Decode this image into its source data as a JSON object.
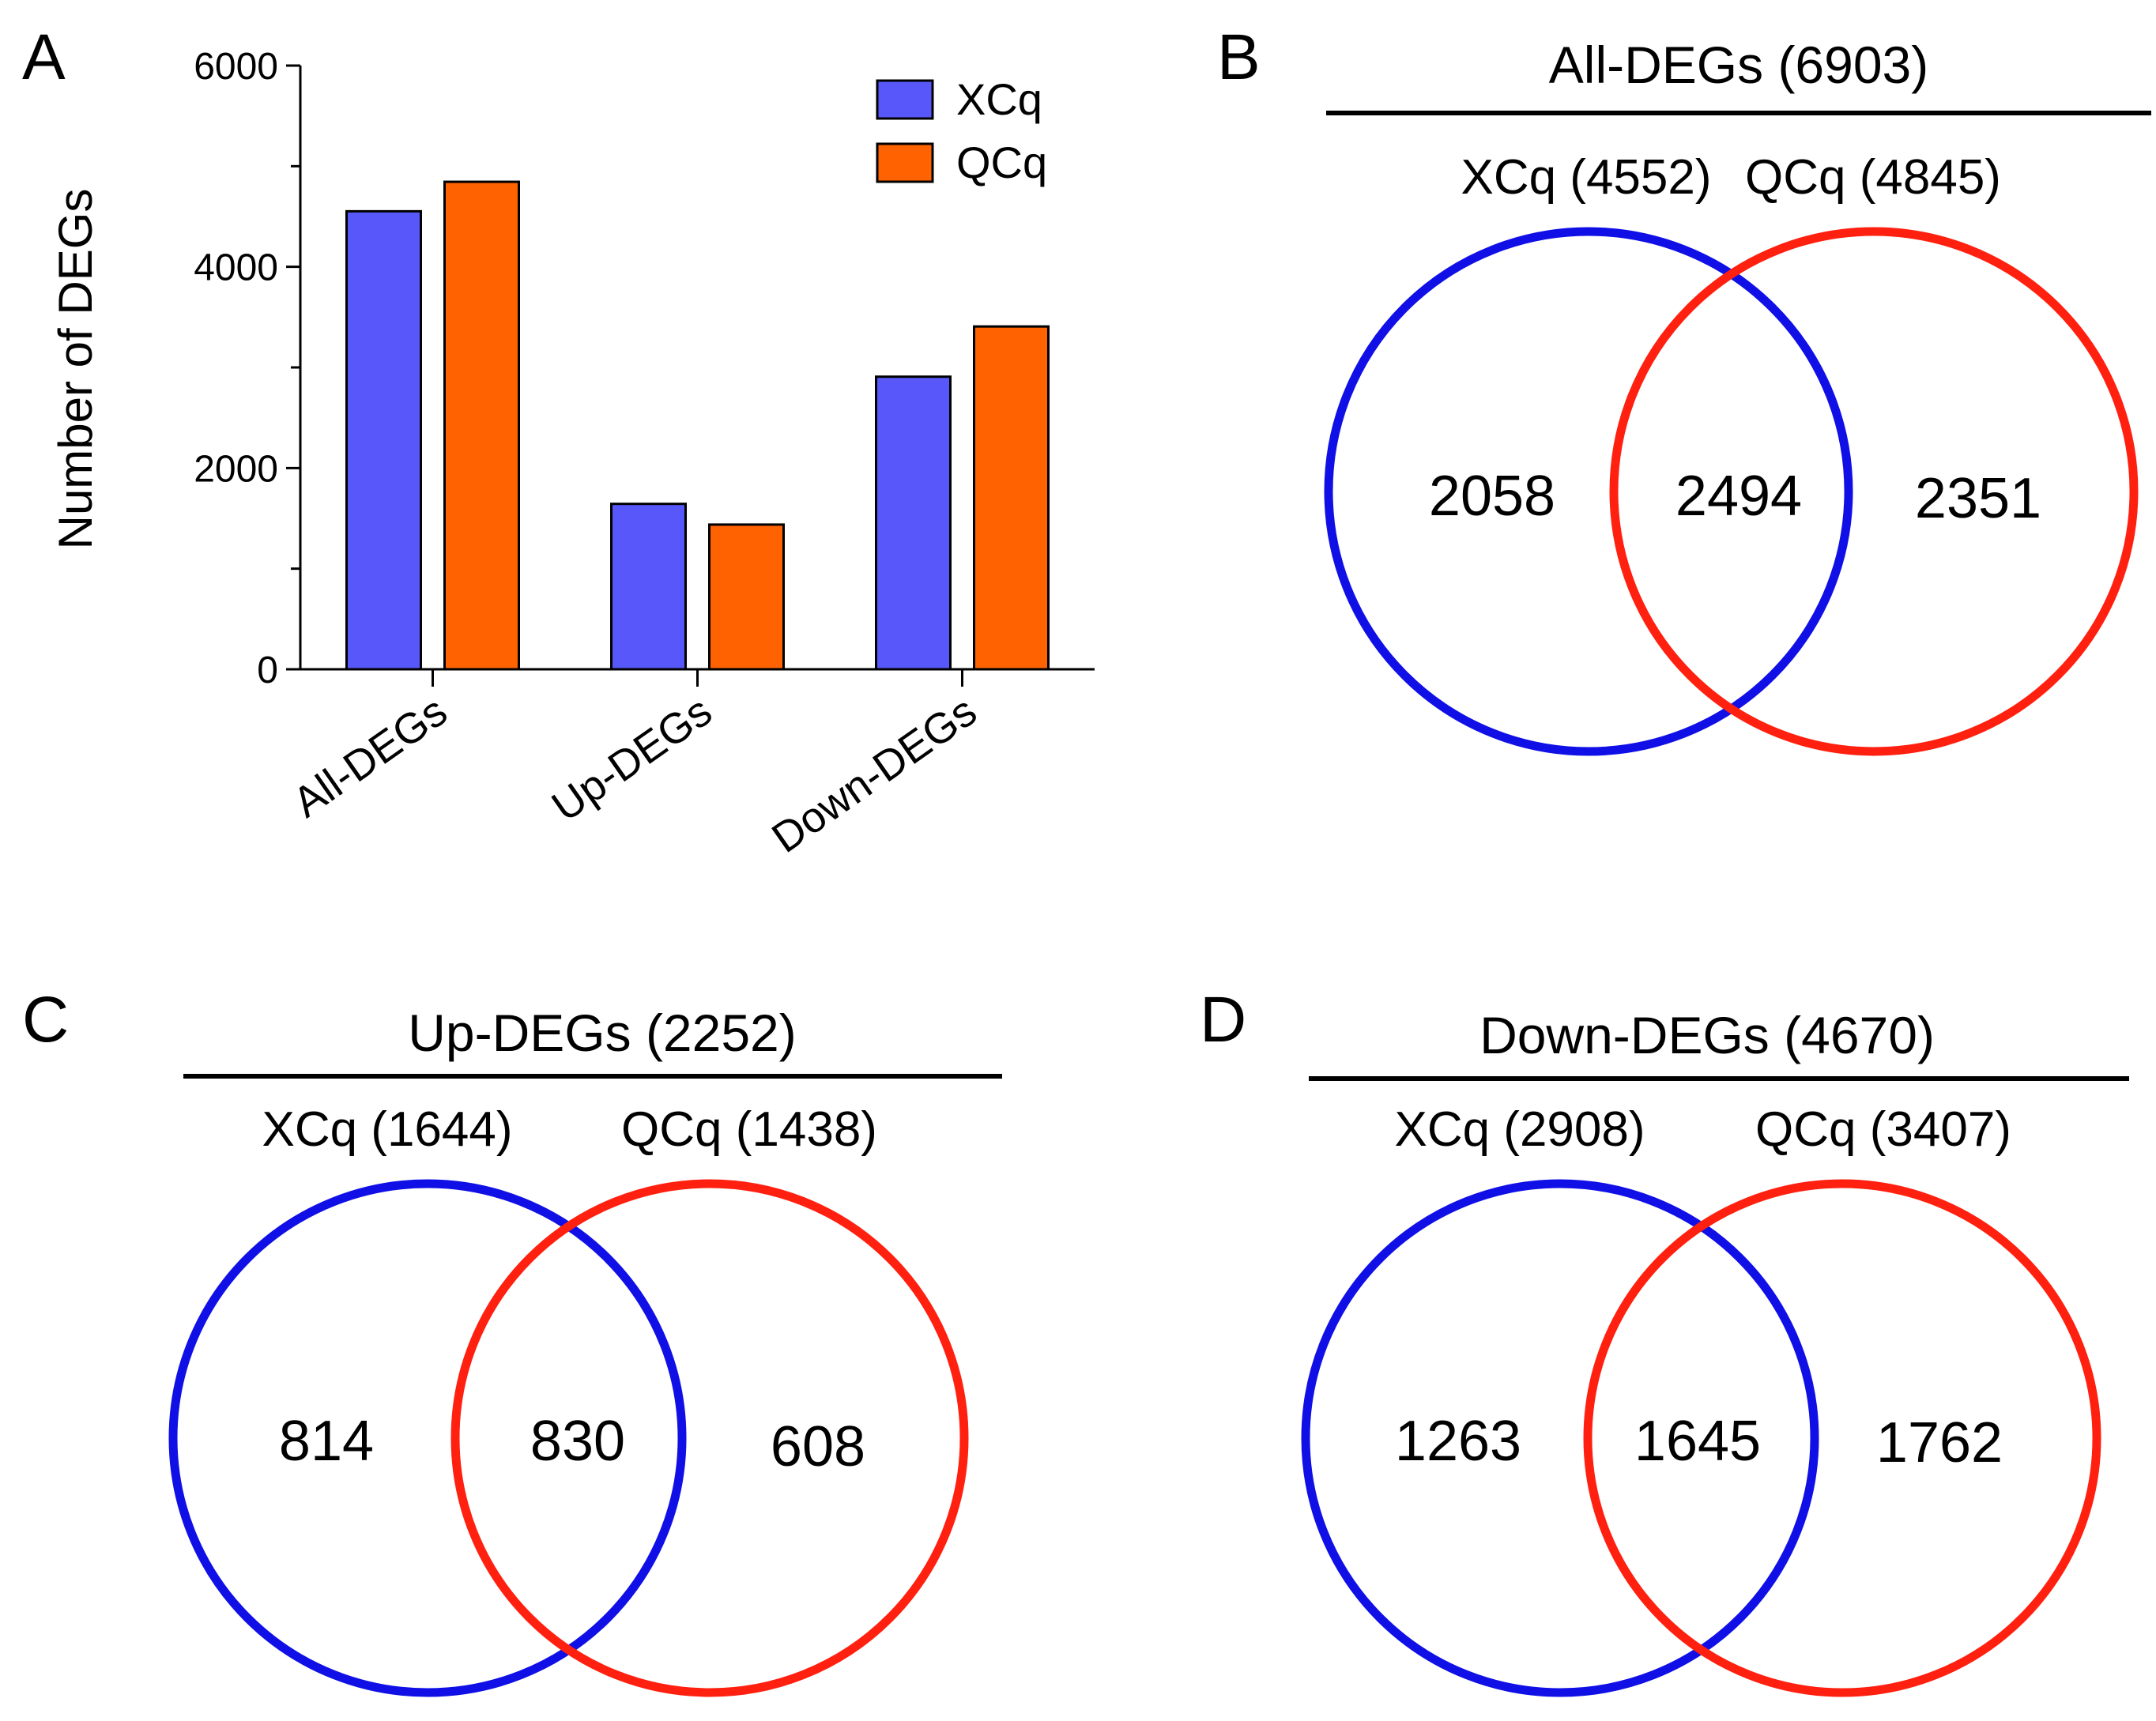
{
  "chart_data": [
    {
      "panel": "A",
      "type": "bar",
      "title": "",
      "xlabel": "",
      "ylabel": "Number of DEGs",
      "ylim": [
        0,
        6000
      ],
      "yticks": [
        "0",
        "2000",
        "4000",
        "6000"
      ],
      "categories": [
        "All-DEGs",
        "Up-DEGs",
        "Down-DEGs"
      ],
      "series": [
        {
          "name": "XCq",
          "color": "#5757fa",
          "values": [
            4552,
            1644,
            2908
          ]
        },
        {
          "name": "QCq",
          "color": "#ff6200",
          "values": [
            4845,
            1438,
            3407
          ]
        }
      ],
      "legend_position": "top-right"
    },
    {
      "panel": "B",
      "type": "venn",
      "title": "All-DEGs (6903)",
      "sets": [
        {
          "label": "XCq (4552)",
          "color": "#1010e6"
        },
        {
          "label": "QCq (4845)",
          "color": "#ff2010"
        }
      ],
      "regions": {
        "left": "2058",
        "overlap": "2494",
        "right": "2351"
      }
    },
    {
      "panel": "C",
      "type": "venn",
      "title": "Up-DEGs (2252)",
      "sets": [
        {
          "label": "XCq (1644)",
          "color": "#1010e6"
        },
        {
          "label": "QCq (1438)",
          "color": "#ff2010"
        }
      ],
      "regions": {
        "left": "814",
        "overlap": "830",
        "right": "608"
      }
    },
    {
      "panel": "D",
      "type": "venn",
      "title": "Down-DEGs (4670)",
      "sets": [
        {
          "label": "XCq (2908)",
          "color": "#1010e6"
        },
        {
          "label": "QCq (3407)",
          "color": "#ff2010"
        }
      ],
      "regions": {
        "left": "1263",
        "overlap": "1645",
        "right": "1762"
      }
    }
  ]
}
